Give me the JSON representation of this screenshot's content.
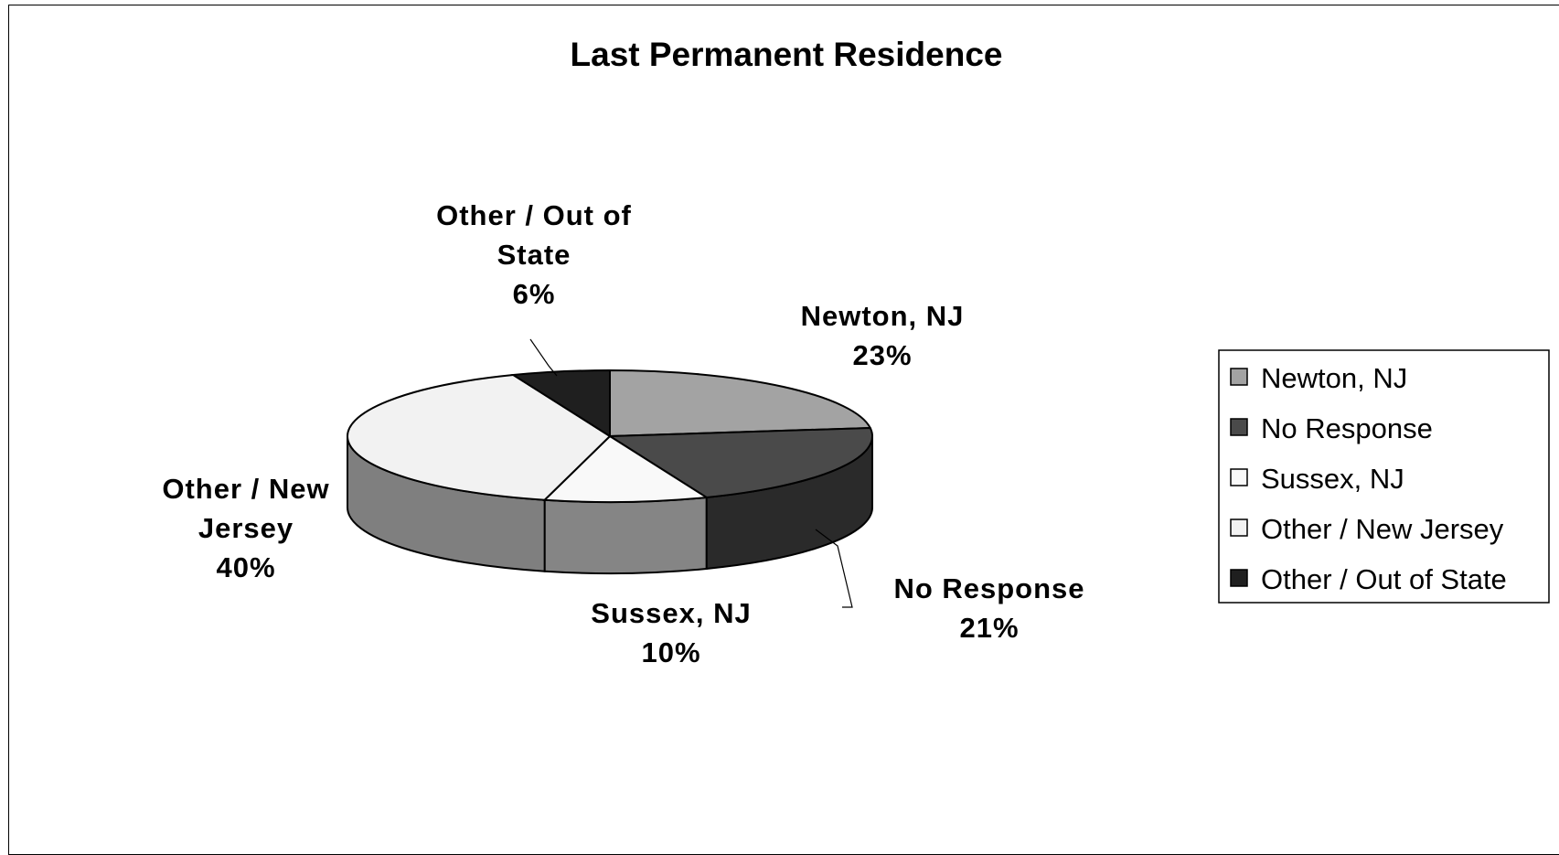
{
  "chart_data": {
    "type": "pie",
    "title": "Last Permanent Residence",
    "categories": [
      "Newton, NJ",
      "No Response",
      "Sussex, NJ",
      "Other / New Jersey",
      "Other / Out of State"
    ],
    "values": [
      23,
      21,
      10,
      40,
      6
    ],
    "value_labels": [
      "23%",
      "21%",
      "10%",
      "40%",
      "6%"
    ],
    "label_lines": [
      [
        "Newton, NJ"
      ],
      [
        "No Response"
      ],
      [
        "Sussex, NJ"
      ],
      [
        "Other / New",
        "Jersey"
      ],
      [
        "Other / Out of",
        "State"
      ]
    ],
    "colors": [
      "#a3a3a3",
      "#4a4a4a",
      "#f9f9f9",
      "#f2f2f2",
      "#1f1f1f"
    ],
    "side_colors": [
      "#8a8a8a",
      "#2a2a2a",
      "#858585",
      "#7f7f7f",
      "#111111"
    ],
    "legend": {
      "position": "right",
      "entries": [
        "Newton, NJ",
        "No Response",
        "Sussex, NJ",
        "Other / New Jersey",
        "Other / Out of State"
      ]
    },
    "style": "3d"
  }
}
